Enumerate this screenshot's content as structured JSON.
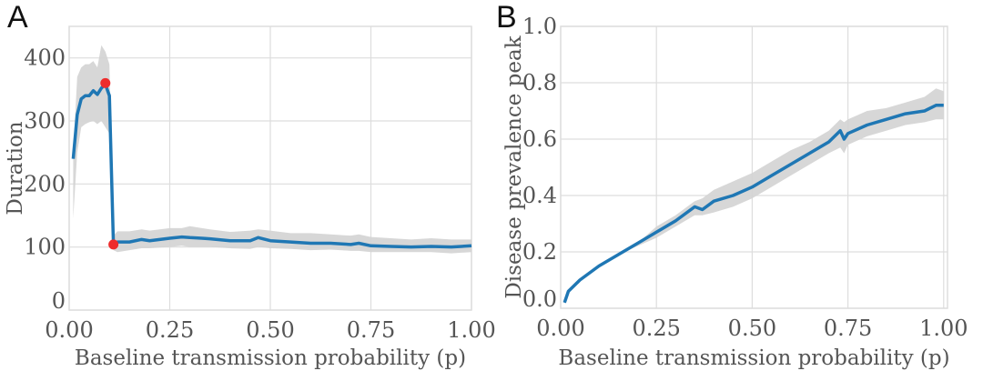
{
  "colors": {
    "line": "#1f77b4",
    "band": "#d3d3d3",
    "marker": "#ee2c2c",
    "grid": "#dddddd"
  },
  "chart_data": [
    {
      "panel": "A",
      "type": "line",
      "xlabel": "Baseline transmission probability (p)",
      "ylabel": "Duration",
      "xlim": [
        0,
        1.0
      ],
      "ylim": [
        0,
        450
      ],
      "xticks": [
        "0.00",
        "0.25",
        "0.50",
        "0.75",
        "1.00"
      ],
      "yticks": [
        "0",
        "100",
        "200",
        "300",
        "400"
      ],
      "grid": true,
      "x": [
        0.01,
        0.02,
        0.03,
        0.04,
        0.05,
        0.06,
        0.07,
        0.08,
        0.09,
        0.1,
        0.11,
        0.12,
        0.15,
        0.18,
        0.2,
        0.25,
        0.28,
        0.3,
        0.33,
        0.35,
        0.4,
        0.45,
        0.47,
        0.5,
        0.55,
        0.6,
        0.65,
        0.7,
        0.72,
        0.75,
        0.8,
        0.85,
        0.9,
        0.95,
        1.0
      ],
      "y": [
        240,
        310,
        335,
        340,
        340,
        348,
        342,
        352,
        358,
        340,
        104,
        108,
        108,
        112,
        110,
        114,
        116,
        115,
        114,
        113,
        110,
        110,
        115,
        110,
        108,
        106,
        106,
        104,
        106,
        102,
        101,
        100,
        101,
        100,
        102
      ],
      "lower": [
        145,
        250,
        290,
        295,
        298,
        300,
        295,
        300,
        290,
        280,
        95,
        92,
        95,
        98,
        98,
        100,
        102,
        100,
        100,
        100,
        98,
        97,
        100,
        98,
        97,
        95,
        96,
        94,
        94,
        92,
        92,
        92,
        92,
        90,
        92
      ],
      "upper": [
        250,
        370,
        385,
        390,
        390,
        395,
        385,
        420,
        410,
        390,
        118,
        125,
        125,
        128,
        126,
        130,
        130,
        133,
        130,
        128,
        124,
        126,
        128,
        126,
        122,
        122,
        120,
        118,
        120,
        116,
        114,
        112,
        114,
        112,
        112
      ],
      "markers": [
        {
          "x": 0.09,
          "y": 360
        },
        {
          "x": 0.11,
          "y": 104
        }
      ]
    },
    {
      "panel": "B",
      "type": "line",
      "xlabel": "Baseline transmission probability (p)",
      "ylabel": "Disease prevalence peak",
      "xlim": [
        0,
        1.01
      ],
      "ylim": [
        0,
        1.0
      ],
      "xticks": [
        "0.00",
        "0.25",
        "0.50",
        "0.75",
        "1.00"
      ],
      "yticks": [
        "0.0",
        "0.2",
        "0.4",
        "0.6",
        "0.8",
        "1.0"
      ],
      "grid": true,
      "x": [
        0.01,
        0.02,
        0.05,
        0.1,
        0.15,
        0.2,
        0.25,
        0.3,
        0.35,
        0.37,
        0.4,
        0.45,
        0.5,
        0.55,
        0.6,
        0.65,
        0.7,
        0.73,
        0.74,
        0.75,
        0.8,
        0.85,
        0.9,
        0.95,
        0.98,
        1.0
      ],
      "y": [
        0.02,
        0.06,
        0.1,
        0.15,
        0.19,
        0.23,
        0.27,
        0.31,
        0.36,
        0.35,
        0.38,
        0.4,
        0.43,
        0.47,
        0.51,
        0.55,
        0.59,
        0.63,
        0.6,
        0.62,
        0.65,
        0.67,
        0.69,
        0.7,
        0.72,
        0.72
      ],
      "lower": [
        0.02,
        0.06,
        0.1,
        0.15,
        0.19,
        0.22,
        0.25,
        0.29,
        0.33,
        0.33,
        0.34,
        0.36,
        0.39,
        0.43,
        0.47,
        0.51,
        0.55,
        0.57,
        0.55,
        0.58,
        0.61,
        0.63,
        0.65,
        0.66,
        0.67,
        0.67
      ],
      "upper": [
        0.02,
        0.06,
        0.1,
        0.15,
        0.19,
        0.23,
        0.29,
        0.33,
        0.38,
        0.39,
        0.42,
        0.45,
        0.48,
        0.52,
        0.56,
        0.59,
        0.63,
        0.67,
        0.66,
        0.67,
        0.7,
        0.71,
        0.73,
        0.75,
        0.78,
        0.77
      ]
    }
  ]
}
